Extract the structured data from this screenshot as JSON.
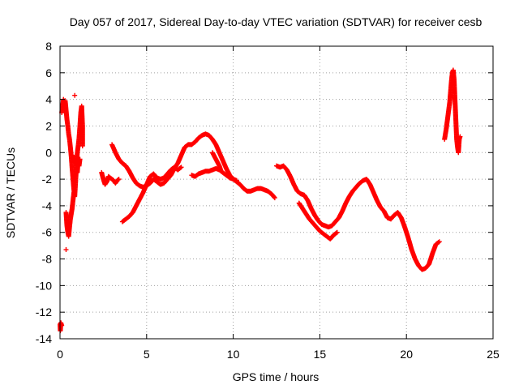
{
  "chart_data": {
    "type": "scatter",
    "title": "Day 057 of 2017, Sidereal Day-to-day VTEC variation (SDTVAR) for receiver cesb",
    "xlabel": "GPS time / hours",
    "ylabel": "SDTVAR / TECUs",
    "xlim": [
      0,
      25
    ],
    "ylim": [
      -14,
      8
    ],
    "xticks": [
      0,
      5,
      10,
      15,
      20,
      25
    ],
    "yticks": [
      -14,
      -12,
      -10,
      -8,
      -6,
      -4,
      -2,
      0,
      2,
      4,
      6,
      8
    ],
    "grid": true,
    "marker": "+",
    "color": "#ff0000",
    "series": [
      {
        "name": "s1",
        "points": [
          [
            0.0,
            -12.9
          ],
          [
            0.02,
            -13.4
          ],
          [
            0.05,
            -12.8
          ],
          [
            0.1,
            -13.0
          ]
        ]
      },
      {
        "name": "s2",
        "points": [
          [
            0.1,
            3.0
          ],
          [
            0.15,
            3.5
          ],
          [
            0.2,
            4.0
          ],
          [
            0.25,
            3.7
          ],
          [
            0.3,
            3.9
          ],
          [
            0.35,
            3.2
          ],
          [
            0.4,
            2.5
          ],
          [
            0.45,
            2.0
          ],
          [
            0.5,
            1.4
          ],
          [
            0.55,
            1.0
          ],
          [
            0.6,
            0.4
          ],
          [
            0.65,
            -0.3
          ],
          [
            0.7,
            -1.2
          ],
          [
            0.75,
            -2.0
          ],
          [
            0.8,
            -2.8
          ],
          [
            0.85,
            -3.3
          ],
          [
            0.9,
            -2.2
          ],
          [
            0.95,
            -1.0
          ],
          [
            1.0,
            0.0
          ],
          [
            1.05,
            0.5
          ],
          [
            1.1,
            1.1
          ],
          [
            1.15,
            2.0
          ],
          [
            1.2,
            3.0
          ],
          [
            1.25,
            3.5
          ],
          [
            1.3,
            2.0
          ],
          [
            1.3,
            0.5
          ]
        ]
      },
      {
        "name": "s3",
        "points": [
          [
            0.35,
            -4.5
          ],
          [
            0.4,
            -5.5
          ],
          [
            0.45,
            -6.0
          ],
          [
            0.5,
            -6.3
          ],
          [
            0.55,
            -5.6
          ],
          [
            0.6,
            -5.0
          ],
          [
            0.65,
            -4.6
          ],
          [
            0.7,
            -4.2
          ],
          [
            0.75,
            -3.6
          ],
          [
            0.8,
            -3.0
          ],
          [
            0.35,
            -7.3
          ],
          [
            0.85,
            4.3
          ],
          [
            1.0,
            -1.5
          ],
          [
            1.05,
            -0.5
          ],
          [
            1.1,
            -1.0
          ],
          [
            1.15,
            -0.5
          ],
          [
            0.9,
            -0.8
          ],
          [
            0.7,
            -0.2
          ]
        ]
      },
      {
        "name": "s4",
        "points": [
          [
            2.4,
            -1.5
          ],
          [
            2.5,
            -2.0
          ],
          [
            2.6,
            -2.4
          ],
          [
            2.7,
            -2.2
          ],
          [
            2.8,
            -1.8
          ],
          [
            2.9,
            -1.9
          ],
          [
            3.0,
            -2.0
          ],
          [
            3.1,
            -2.1
          ],
          [
            3.2,
            -2.3
          ],
          [
            3.3,
            -2.1
          ],
          [
            3.4,
            -2.0
          ]
        ]
      },
      {
        "name": "s5",
        "points": [
          [
            3.0,
            0.6
          ],
          [
            3.2,
            0.0
          ],
          [
            3.4,
            -0.5
          ],
          [
            3.6,
            -0.8
          ],
          [
            3.8,
            -1.0
          ],
          [
            4.0,
            -1.4
          ],
          [
            4.2,
            -1.9
          ],
          [
            4.4,
            -2.3
          ],
          [
            4.6,
            -2.5
          ],
          [
            4.8,
            -2.6
          ],
          [
            5.0,
            -2.5
          ],
          [
            5.2,
            -2.3
          ],
          [
            5.4,
            -2.0
          ],
          [
            5.6,
            -2.2
          ],
          [
            5.8,
            -2.4
          ],
          [
            6.0,
            -2.3
          ],
          [
            6.2,
            -2.0
          ],
          [
            6.4,
            -1.7
          ],
          [
            6.6,
            -1.2
          ],
          [
            6.8,
            -0.8
          ],
          [
            7.0,
            -0.2
          ],
          [
            7.2,
            0.4
          ],
          [
            7.4,
            0.6
          ],
          [
            7.6,
            0.6
          ],
          [
            7.8,
            0.8
          ],
          [
            8.0,
            1.1
          ],
          [
            8.2,
            1.3
          ],
          [
            8.4,
            1.4
          ],
          [
            8.6,
            1.3
          ],
          [
            8.8,
            1.0
          ],
          [
            9.0,
            0.6
          ],
          [
            9.2,
            0.0
          ],
          [
            9.4,
            -0.6
          ],
          [
            9.6,
            -1.2
          ],
          [
            9.8,
            -1.7
          ],
          [
            10.0,
            -2.0
          ],
          [
            10.2,
            -2.2
          ],
          [
            10.4,
            -2.4
          ],
          [
            10.6,
            -2.7
          ],
          [
            10.8,
            -2.9
          ],
          [
            11.0,
            -2.9
          ],
          [
            11.2,
            -2.8
          ],
          [
            11.4,
            -2.7
          ],
          [
            11.6,
            -2.7
          ],
          [
            11.8,
            -2.8
          ],
          [
            12.0,
            -2.9
          ],
          [
            12.2,
            -3.1
          ],
          [
            12.4,
            -3.4
          ]
        ]
      },
      {
        "name": "s6",
        "points": [
          [
            3.6,
            -5.2
          ],
          [
            3.8,
            -5.0
          ],
          [
            4.0,
            -4.8
          ],
          [
            4.2,
            -4.5
          ],
          [
            4.4,
            -4.0
          ],
          [
            4.6,
            -3.5
          ],
          [
            4.8,
            -3.0
          ],
          [
            5.0,
            -2.4
          ],
          [
            5.2,
            -1.8
          ],
          [
            5.4,
            -1.6
          ],
          [
            5.6,
            -1.9
          ],
          [
            5.8,
            -2.0
          ],
          [
            6.0,
            -1.9
          ],
          [
            6.2,
            -1.6
          ],
          [
            6.4,
            -1.3
          ],
          [
            6.6,
            -1.1
          ],
          [
            6.8,
            -1.3
          ],
          [
            7.0,
            -1.1
          ]
        ]
      },
      {
        "name": "s7",
        "points": [
          [
            7.6,
            -1.7
          ],
          [
            7.8,
            -1.8
          ],
          [
            8.0,
            -1.6
          ],
          [
            8.2,
            -1.5
          ],
          [
            8.4,
            -1.4
          ],
          [
            8.6,
            -1.4
          ],
          [
            8.8,
            -1.3
          ],
          [
            9.0,
            -1.2
          ],
          [
            9.2,
            -1.3
          ],
          [
            9.4,
            -1.5
          ],
          [
            9.6,
            -1.7
          ],
          [
            9.8,
            -1.9
          ],
          [
            10.0,
            -2.0
          ],
          [
            10.2,
            -2.1
          ],
          [
            8.8,
            0.0
          ],
          [
            9.0,
            -0.5
          ],
          [
            9.2,
            -1.0
          ],
          [
            9.3,
            -1.4
          ]
        ]
      },
      {
        "name": "s8",
        "points": [
          [
            12.5,
            -1.0
          ],
          [
            12.7,
            -1.1
          ],
          [
            12.9,
            -1.0
          ],
          [
            13.1,
            -1.3
          ],
          [
            13.3,
            -1.8
          ],
          [
            13.5,
            -2.4
          ],
          [
            13.7,
            -2.9
          ],
          [
            13.9,
            -3.1
          ],
          [
            14.1,
            -3.2
          ],
          [
            14.3,
            -3.6
          ],
          [
            14.5,
            -4.2
          ],
          [
            14.7,
            -4.7
          ],
          [
            14.9,
            -5.1
          ],
          [
            15.1,
            -5.4
          ],
          [
            15.3,
            -5.5
          ],
          [
            15.5,
            -5.6
          ],
          [
            15.7,
            -5.5
          ],
          [
            15.9,
            -5.2
          ],
          [
            16.1,
            -4.9
          ],
          [
            16.3,
            -4.4
          ],
          [
            16.5,
            -3.8
          ],
          [
            16.7,
            -3.3
          ],
          [
            16.9,
            -2.9
          ],
          [
            17.1,
            -2.6
          ],
          [
            17.3,
            -2.3
          ],
          [
            17.5,
            -2.1
          ],
          [
            17.7,
            -2.0
          ],
          [
            17.9,
            -2.4
          ],
          [
            18.1,
            -3.0
          ],
          [
            18.3,
            -3.6
          ],
          [
            18.5,
            -4.1
          ],
          [
            18.7,
            -4.4
          ],
          [
            18.9,
            -4.9
          ],
          [
            19.1,
            -5.0
          ],
          [
            19.3,
            -4.7
          ],
          [
            19.5,
            -4.5
          ],
          [
            19.7,
            -4.9
          ],
          [
            19.9,
            -5.6
          ],
          [
            20.1,
            -6.4
          ],
          [
            20.3,
            -7.3
          ],
          [
            20.5,
            -8.0
          ],
          [
            20.7,
            -8.5
          ],
          [
            20.9,
            -8.8
          ],
          [
            21.1,
            -8.7
          ],
          [
            21.3,
            -8.4
          ],
          [
            21.5,
            -7.6
          ],
          [
            21.7,
            -6.9
          ],
          [
            21.9,
            -6.7
          ]
        ]
      },
      {
        "name": "s9",
        "points": [
          [
            13.8,
            -3.8
          ],
          [
            14.0,
            -4.2
          ],
          [
            14.2,
            -4.6
          ],
          [
            14.4,
            -5.0
          ],
          [
            14.6,
            -5.3
          ],
          [
            14.8,
            -5.6
          ],
          [
            15.0,
            -5.9
          ],
          [
            15.2,
            -6.1
          ],
          [
            15.4,
            -6.3
          ],
          [
            15.6,
            -6.5
          ],
          [
            15.8,
            -6.2
          ],
          [
            16.0,
            -6.0
          ]
        ]
      },
      {
        "name": "s10",
        "points": [
          [
            22.2,
            1.0
          ],
          [
            22.3,
            1.8
          ],
          [
            22.4,
            2.8
          ],
          [
            22.5,
            3.8
          ],
          [
            22.55,
            4.6
          ],
          [
            22.6,
            5.4
          ],
          [
            22.65,
            6.0
          ],
          [
            22.7,
            6.2
          ],
          [
            22.75,
            5.5
          ],
          [
            22.8,
            4.0
          ],
          [
            22.85,
            2.5
          ],
          [
            22.9,
            1.0
          ],
          [
            22.95,
            0.4
          ],
          [
            23.0,
            0.0
          ],
          [
            23.05,
            1.0
          ],
          [
            23.1,
            1.2
          ]
        ]
      }
    ]
  }
}
